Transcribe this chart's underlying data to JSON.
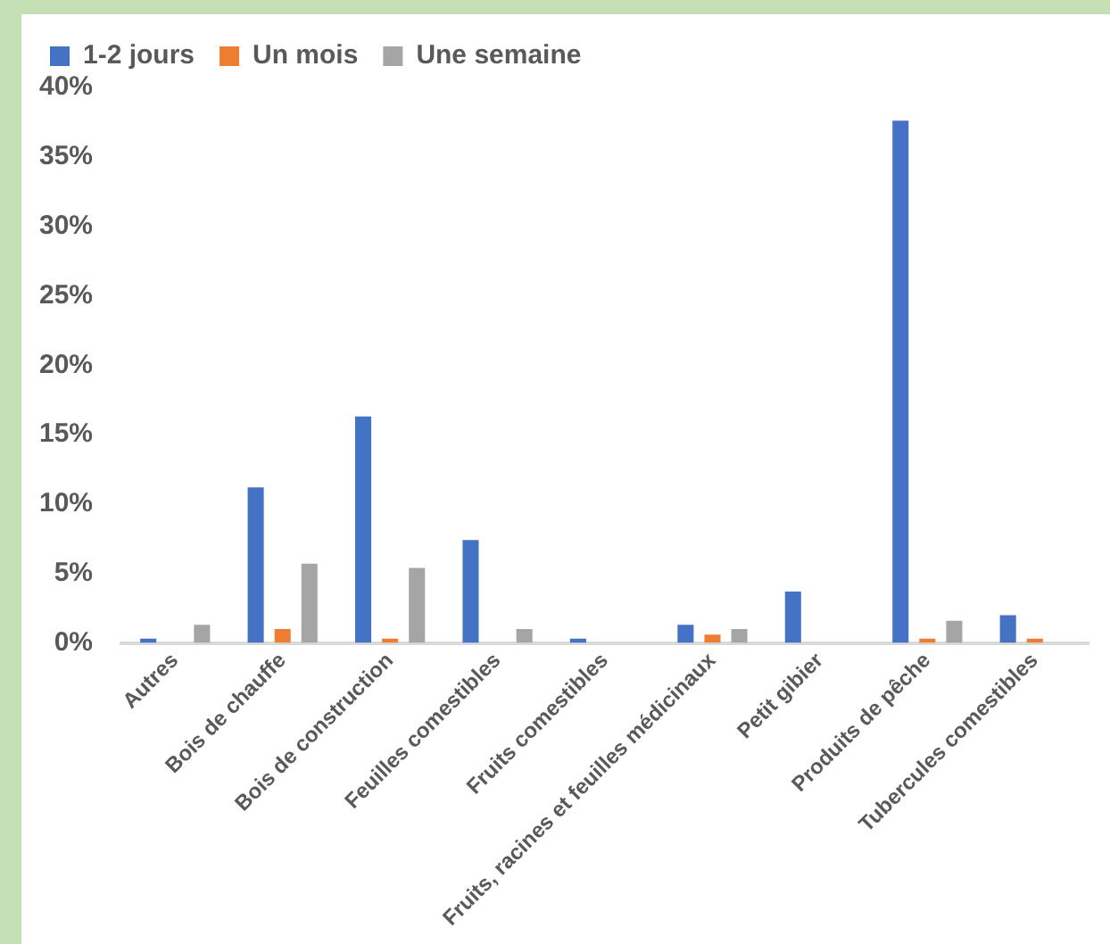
{
  "chart_data": {
    "type": "bar",
    "categories": [
      "Autres",
      "Bois de chauffe",
      "Bois de construction",
      "Feuilles comestibles",
      "Fruits comestibles",
      "Fruits, racines et feuilles médicinaux",
      "Petit gibier",
      "Produits de pêche",
      "Tubercules comestibles"
    ],
    "series": [
      {
        "name": "1-2 jours",
        "color": "#4472c4",
        "values": [
          0.3,
          11.2,
          16.3,
          7.4,
          0.3,
          1.3,
          3.7,
          37.6,
          2.0
        ]
      },
      {
        "name": "Un mois",
        "color": "#ed7d31",
        "values": [
          0,
          1.0,
          0.3,
          0,
          0,
          0.6,
          0,
          0.3,
          0.3
        ]
      },
      {
        "name": "Une semaine",
        "color": "#a5a5a5",
        "values": [
          1.3,
          5.7,
          5.4,
          1.0,
          0,
          1.0,
          0,
          1.6,
          0
        ]
      }
    ],
    "ylim": [
      0,
      40
    ],
    "yticks": [
      {
        "value": 0,
        "label": "0%"
      },
      {
        "value": 5,
        "label": "5%"
      },
      {
        "value": 10,
        "label": "10%"
      },
      {
        "value": 15,
        "label": "15%"
      },
      {
        "value": 20,
        "label": "20%"
      },
      {
        "value": 25,
        "label": "25%"
      },
      {
        "value": 30,
        "label": "30%"
      },
      {
        "value": 35,
        "label": "35%"
      },
      {
        "value": 40,
        "label": "40%"
      }
    ],
    "grid": false,
    "legend": "top left"
  }
}
